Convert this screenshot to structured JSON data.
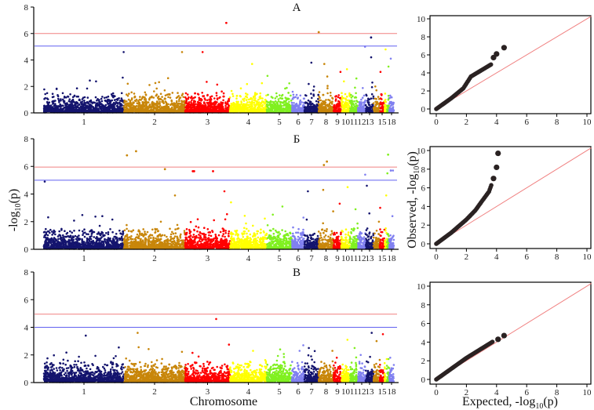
{
  "labels": {
    "y_left": "-log",
    "y_left_sub": "10",
    "y_left_tail": "(p)",
    "y_right": "Observed, -log",
    "y_right_sub": "10",
    "y_right_tail": "(p)",
    "x_left": "Chromosome",
    "x_right": "Expected, -log",
    "x_right_sub": "10",
    "x_right_tail": "(p)"
  },
  "colors": [
    "#14146e",
    "#c8860a",
    "#ff0000",
    "#ffff00",
    "#80f020",
    "#8080f0"
  ],
  "threshold_colors": {
    "upper": "#f08080",
    "lower": "#6060f0"
  },
  "chart_data": [
    {
      "type": "scatter",
      "kind": "manhattan",
      "title": "А",
      "ylim": [
        0,
        8
      ],
      "yticks": [
        "0",
        "2",
        "4",
        "6",
        "8"
      ],
      "xtick_labels": [
        "1",
        "2",
        "3",
        "4",
        "5",
        "6",
        "7",
        "8",
        "9",
        "10",
        "11",
        "12",
        "13",
        "15",
        "18"
      ],
      "thresholds": {
        "upper": 6.0,
        "lower": 5.05
      },
      "chrom_max": [
        4.6,
        4.6,
        4.6,
        3.7,
        2.8,
        1.6,
        3.8,
        3.7,
        3.1,
        3.3,
        2.6,
        5.0,
        4.2,
        2.0,
        3.1,
        4.8,
        3.5,
        4.1
      ],
      "peaks": [
        {
          "chr": 3,
          "y": 6.8
        },
        {
          "chr": 8,
          "y": 6.1
        },
        {
          "chr": 13,
          "y": 5.7
        }
      ]
    },
    {
      "type": "scatter",
      "kind": "manhattan",
      "title": "Б",
      "ylim": [
        0,
        8
      ],
      "yticks": [
        "0",
        "2",
        "4",
        "6",
        "8"
      ],
      "xtick_labels": [
        "1",
        "2",
        "3",
        "4",
        "5",
        "6",
        "7",
        "8",
        "9",
        "10",
        "11",
        "12",
        "13",
        "15",
        "18"
      ],
      "thresholds": {
        "upper": 5.95,
        "lower": 5.0
      },
      "chrom_max": [
        4.9,
        3.9,
        4.2,
        3.4,
        3.1,
        2.3,
        4.2,
        4.3,
        3.3,
        4.5,
        2.9,
        5.4,
        4.6,
        2.0,
        3.0,
        3.9,
        5.5,
        5.7
      ],
      "peaks": [
        {
          "chr": 2,
          "y": 7.1
        },
        {
          "chr": 2,
          "y": 6.8
        },
        {
          "chr": 2,
          "y": 5.8
        },
        {
          "chr": 3,
          "y": 5.65
        },
        {
          "chr": 3,
          "y": 5.65
        },
        {
          "chr": 3,
          "y": 5.65
        },
        {
          "chr": 8,
          "y": 6.35
        },
        {
          "chr": 8,
          "y": 6.1
        },
        {
          "chr": 17,
          "y": 6.85
        },
        {
          "chr": 18,
          "y": 5.7
        }
      ]
    },
    {
      "type": "scatter",
      "kind": "manhattan",
      "title": "В",
      "ylim": [
        0,
        8
      ],
      "yticks": [
        "0",
        "2",
        "4",
        "6",
        "8"
      ],
      "xtick_labels": [
        "1",
        "2",
        "3",
        "4",
        "5",
        "6",
        "7",
        "8",
        "9",
        "10",
        "11",
        "12",
        "13",
        "15",
        "18"
      ],
      "thresholds": {
        "upper": 4.95,
        "lower": 4.0
      },
      "chrom_max": [
        3.4,
        3.6,
        4.6,
        2.3,
        2.4,
        2.7,
        2.5,
        2.3,
        1.8,
        3.1,
        2.5,
        2.0,
        3.6,
        3.0,
        3.5,
        1.7,
        1.7,
        1.8
      ],
      "peaks": []
    },
    {
      "type": "scatter",
      "kind": "qq",
      "xlim": [
        0,
        10
      ],
      "ylim": [
        0,
        10
      ],
      "xticks": [
        "0",
        "2",
        "4",
        "6",
        "8",
        "10"
      ],
      "yticks": [
        "0",
        "2",
        "4",
        "6",
        "8",
        "10"
      ],
      "curve": [
        [
          0,
          0
        ],
        [
          1,
          1.2
        ],
        [
          1.8,
          2.3
        ],
        [
          2.3,
          3.6
        ],
        [
          3.0,
          4.3
        ],
        [
          3.7,
          5.0
        ]
      ],
      "outliers": [
        [
          3.8,
          5.7
        ],
        [
          4.0,
          6.1
        ],
        [
          4.5,
          6.8
        ]
      ]
    },
    {
      "type": "scatter",
      "kind": "qq",
      "xlim": [
        0,
        10
      ],
      "ylim": [
        0,
        10
      ],
      "xticks": [
        "0",
        "2",
        "4",
        "6",
        "8",
        "10"
      ],
      "yticks": [
        "0",
        "2",
        "4",
        "6",
        "8",
        "10"
      ],
      "curve": [
        [
          0,
          0
        ],
        [
          1,
          1.2
        ],
        [
          2,
          2.6
        ],
        [
          2.6,
          3.6
        ],
        [
          3.0,
          4.5
        ],
        [
          3.5,
          5.6
        ],
        [
          3.7,
          6.5
        ]
      ],
      "outliers": [
        [
          3.8,
          7.0
        ],
        [
          4.0,
          8.2
        ],
        [
          4.1,
          9.7
        ]
      ]
    },
    {
      "type": "scatter",
      "kind": "qq",
      "xlim": [
        0,
        10
      ],
      "ylim": [
        0,
        10
      ],
      "xticks": [
        "0",
        "2",
        "4",
        "6",
        "8",
        "10"
      ],
      "yticks": [
        "0",
        "2",
        "4",
        "6",
        "8",
        "10"
      ],
      "curve": [
        [
          0,
          0
        ],
        [
          2,
          2.3
        ],
        [
          3,
          3.3
        ],
        [
          3.8,
          4.1
        ]
      ],
      "outliers": [
        [
          4.1,
          4.3
        ],
        [
          4.5,
          4.7
        ]
      ]
    }
  ]
}
